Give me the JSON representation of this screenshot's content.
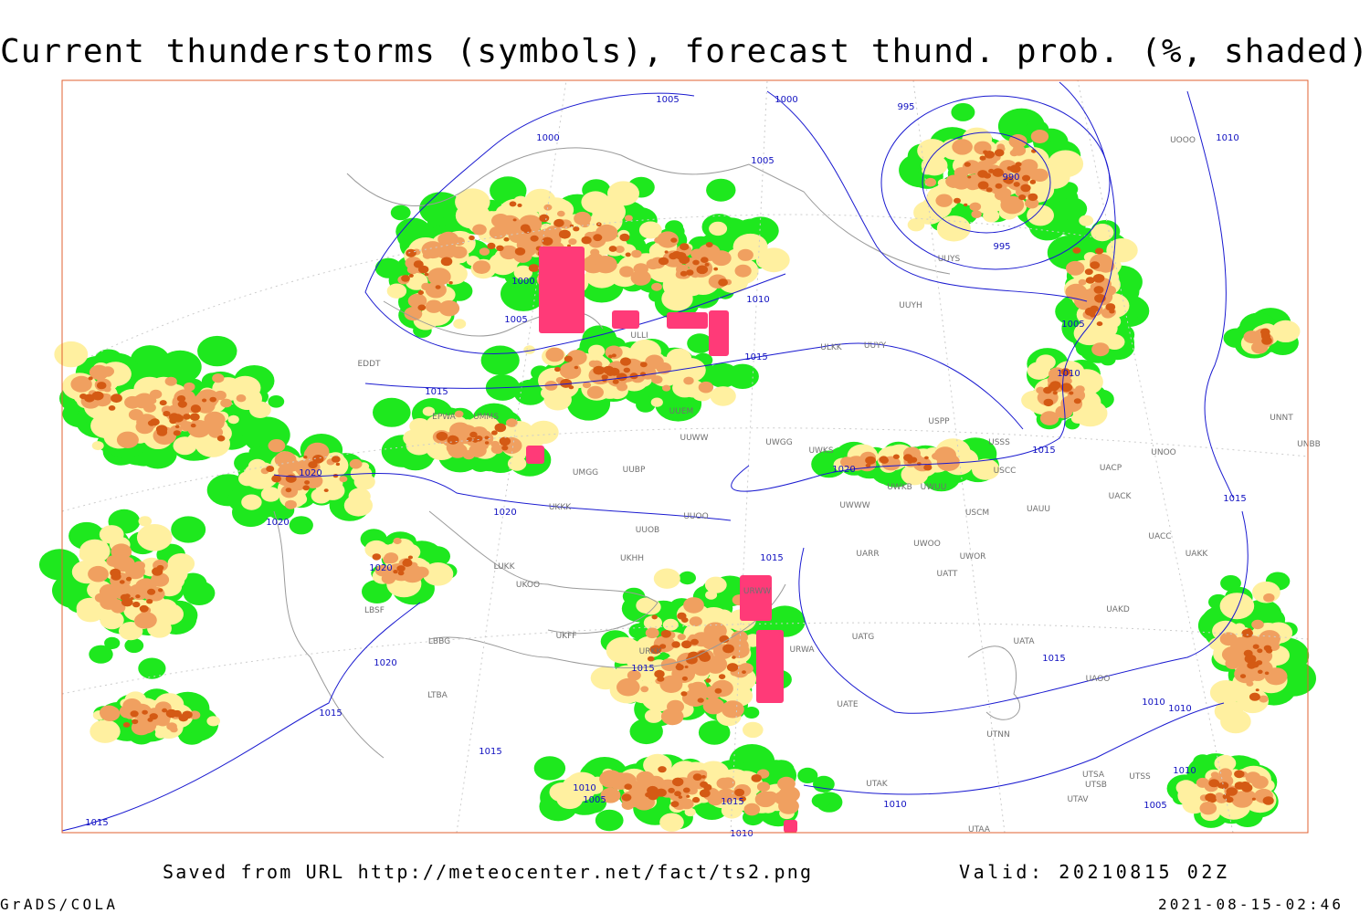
{
  "header": {
    "title": "Current thunderstorms (symbols), forecast thund. prob. (%, shaded)"
  },
  "isobars": {
    "labels": [
      "1005",
      "1000",
      "1000",
      "1005",
      "995",
      "990",
      "995",
      "1010",
      "1000",
      "1005",
      "1010",
      "1015",
      "1015",
      "1005",
      "1010",
      "1015",
      "1020",
      "1020",
      "1020",
      "1020",
      "1015",
      "1020",
      "1015",
      "1020",
      "1015",
      "1015",
      "1015",
      "1010",
      "1010",
      "1015",
      "1010",
      "1005",
      "1015",
      "1010",
      "1010",
      "1005",
      "1015",
      "1010"
    ]
  },
  "stations": [
    "EDDT",
    "EPWA",
    "UMMS",
    "ULLI",
    "UUEM",
    "UUWW",
    "UWGG",
    "UWKS",
    "UWKB",
    "UWUU",
    "USCC",
    "USSS",
    "USPP",
    "UUYY",
    "UUYH",
    "ULKK",
    "UMGG",
    "UUBP",
    "UKKK",
    "UUOB",
    "UUOO",
    "UKHH",
    "UKOO",
    "LUKK",
    "LBBG",
    "LBSF",
    "LTBA",
    "UWWW",
    "USCM",
    "UAUU",
    "UACK",
    "UACP",
    "UNOO",
    "UNNT",
    "UNBB",
    "UACC",
    "UAKK",
    "UARR",
    "UWOO",
    "UWOR",
    "UATT",
    "UAKD",
    "UATG",
    "UATA",
    "UAOO",
    "UATE",
    "UTNN",
    "UTAK",
    "UTAA",
    "UTSA",
    "UTSB",
    "UTSS",
    "UTAV",
    "URWA",
    "URWW",
    "URKK",
    "UKFF",
    "UOOO",
    "UUYS"
  ],
  "footer": {
    "source": "Saved from URL http://meteocenter.net/fact/ts2.png",
    "valid": "Valid: 20210815 02Z",
    "software": "GrADS/COLA",
    "timestamp": "2021-08-15-02:46"
  }
}
